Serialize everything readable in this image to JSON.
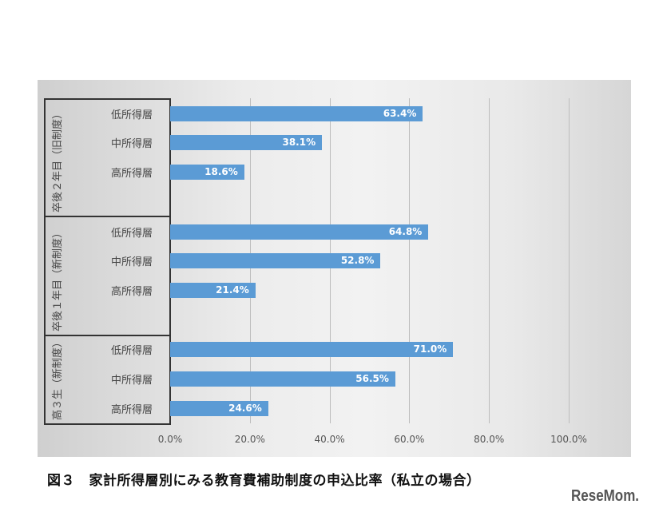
{
  "chart_data": {
    "type": "bar",
    "orientation": "horizontal",
    "groups": [
      {
        "label": "卒後２年目（旧制度）",
        "categories": [
          "低所得層",
          "中所得層",
          "高所得層"
        ],
        "values": [
          63.4,
          38.1,
          18.6
        ],
        "labels": [
          "63.4%",
          "38.1%",
          "18.6%"
        ]
      },
      {
        "label": "卒後１年目（新制度）",
        "categories": [
          "低所得層",
          "中所得層",
          "高所得層"
        ],
        "values": [
          64.8,
          52.8,
          21.4
        ],
        "labels": [
          "64.8%",
          "52.8%",
          "21.4%"
        ]
      },
      {
        "label": "高３生（新制度）",
        "categories": [
          "低所得層",
          "中所得層",
          "高所得層"
        ],
        "values": [
          71.0,
          56.5,
          24.6
        ],
        "labels": [
          "71.0%",
          "56.5%",
          "24.6%"
        ]
      }
    ],
    "xlim": [
      0,
      100
    ],
    "xticks": [
      "0.0%",
      "20.0%",
      "40.0%",
      "60.0%",
      "80.0%",
      "100.0%"
    ],
    "grid": true,
    "bar_color": "#5b9bd5",
    "title": "図３　家計所得層別にみる教育費補助制度の申込比率（私立の場合）"
  },
  "watermark": "ReseMom"
}
